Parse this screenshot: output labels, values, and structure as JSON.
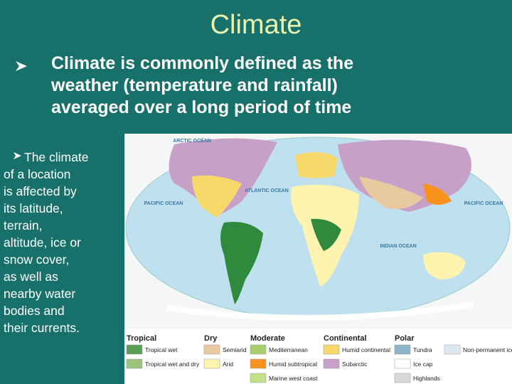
{
  "slide": {
    "title": "Climate",
    "main_bullet_lines": [
      "Climate is commonly defined as the",
      "weather (temperature and rainfall)",
      "averaged over a long period of time"
    ],
    "side_bullet_lines": [
      "The climate",
      "of a location",
      "is affected by",
      "its latitude,",
      "terrain,",
      "altitude, ice or",
      "snow cover,",
      "as well as",
      "nearby water",
      "bodies and",
      "their currents."
    ],
    "map": {
      "ocean_labels": [
        "ARCTIC OCEAN",
        "PACIFIC OCEAN",
        "ATLANTIC OCEAN",
        "INDIAN OCEAN",
        "PACIFIC OCEAN"
      ],
      "legend": {
        "groups": [
          {
            "title": "Tropical",
            "items": [
              "Tropical wet",
              "Tropical wet and dry"
            ]
          },
          {
            "title": "Dry",
            "items": [
              "Semiarid",
              "Arid"
            ]
          },
          {
            "title": "Moderate",
            "items": [
              "Mediterranean",
              "Humid subtropical",
              "Marine west coast"
            ]
          },
          {
            "title": "Continental",
            "items": [
              "Humid continental",
              "Subarctic"
            ]
          },
          {
            "title": "Polar",
            "items": [
              "Tundra",
              "Ice cap",
              "Highlands"
            ]
          }
        ],
        "extra_item": "Non-permanent ice"
      }
    }
  }
}
